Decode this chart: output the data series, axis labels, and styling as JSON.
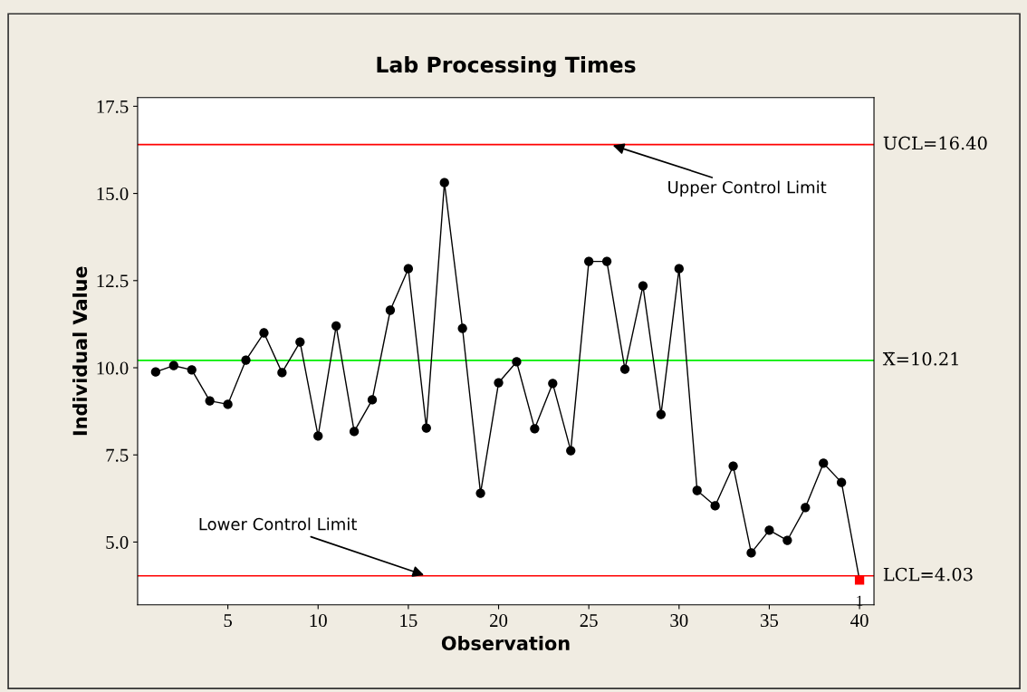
{
  "chart_data": {
    "type": "line",
    "title": "Lab Processing Times",
    "xlabel": "Observation",
    "ylabel": "Individual Value",
    "x": [
      1,
      2,
      3,
      4,
      5,
      6,
      7,
      8,
      9,
      10,
      11,
      12,
      13,
      14,
      15,
      16,
      17,
      18,
      19,
      20,
      21,
      22,
      23,
      24,
      25,
      26,
      27,
      28,
      29,
      30,
      31,
      32,
      33,
      34,
      35,
      36,
      37,
      38,
      39,
      40
    ],
    "series": [
      {
        "color": "#000000",
        "marker": "none",
        "values": [
          9.88,
          10.06,
          9.94,
          9.05,
          8.95,
          10.22,
          11.0,
          9.86,
          10.74,
          8.04,
          11.2,
          8.17,
          9.08,
          11.65,
          12.84,
          8.27,
          15.31,
          11.13,
          6.4,
          9.57,
          10.17,
          8.25,
          9.55,
          7.62,
          13.05,
          13.05,
          9.96,
          12.35,
          8.66,
          12.84,
          6.48,
          6.04,
          7.18,
          4.69,
          5.34,
          5.05,
          5.99,
          7.26,
          6.71,
          3.91
        ]
      },
      {
        "type": "scatter",
        "color": "#000000",
        "marker": "circle",
        "x": [
          1,
          2,
          3,
          4,
          5,
          6,
          7,
          8,
          9,
          10,
          11,
          12,
          13,
          14,
          15,
          16,
          17,
          18,
          19,
          20,
          21,
          22,
          23,
          24,
          25,
          26,
          27,
          28,
          29,
          30,
          31,
          32,
          33,
          34,
          35,
          36,
          37,
          38,
          39
        ],
        "values": [
          9.88,
          10.06,
          9.94,
          9.05,
          8.95,
          10.22,
          11.0,
          9.86,
          10.74,
          8.04,
          11.2,
          8.17,
          9.08,
          11.65,
          12.84,
          8.27,
          15.31,
          11.13,
          6.4,
          9.57,
          10.17,
          8.25,
          9.55,
          7.62,
          13.05,
          13.05,
          9.96,
          12.35,
          8.66,
          12.84,
          6.48,
          6.04,
          7.18,
          4.69,
          5.34,
          5.05,
          5.99,
          7.26,
          6.71
        ]
      },
      {
        "type": "scatter",
        "color": "#ff0000",
        "marker": "square",
        "x": [
          40
        ],
        "values": [
          3.91
        ]
      }
    ],
    "xlim": [
      0,
      40.8
    ],
    "xticks": [
      5,
      10,
      15,
      20,
      25,
      30,
      35,
      40
    ],
    "ylim": [
      3.2,
      17.75
    ],
    "yticks": [
      {
        "value": 5,
        "label": "5.0"
      },
      {
        "value": 7.5,
        "label": "7.5"
      },
      {
        "value": 10,
        "label": "10.0"
      },
      {
        "value": 12.5,
        "label": "12.5"
      },
      {
        "value": 15,
        "label": "15.0"
      },
      {
        "value": 17.5,
        "label": "17.5"
      }
    ],
    "ref_lines": [
      {
        "axis": "y",
        "value": 16.4,
        "label": "UCL=16.40",
        "color": "#ff0000"
      },
      {
        "axis": "y",
        "value": 10.21,
        "label": "X̄=10.21",
        "color": "#00ee00"
      },
      {
        "axis": "y",
        "value": 4.03,
        "label": "LCL=4.03",
        "color": "#ff0000"
      }
    ],
    "annotations": [
      {
        "text": "Upper Control Limit",
        "x": 26.2,
        "y": 16.4
      },
      {
        "text": "Lower Control Limit",
        "x": 16,
        "y": 4.03
      },
      {
        "text": "1",
        "x": 40,
        "y": 3.91
      }
    ],
    "grid": false,
    "legend": false
  }
}
